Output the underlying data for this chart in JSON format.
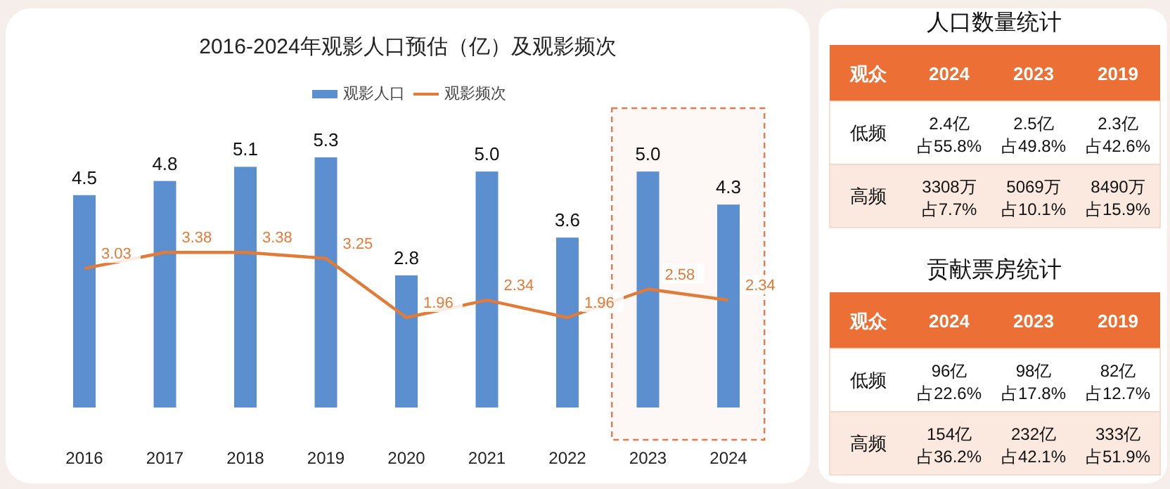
{
  "chart_data": [
    {
      "type": "bar",
      "title": "2016-2024年观影人口预估（亿）及观影频次",
      "categories": [
        "2016",
        "2017",
        "2018",
        "2019",
        "2020",
        "2021",
        "2022",
        "2023",
        "2024"
      ],
      "series": [
        {
          "name": "观影人口",
          "type": "bar",
          "color": "#5b8fd0",
          "values": [
            4.5,
            4.8,
            5.1,
            5.3,
            2.8,
            5.0,
            3.6,
            5.0,
            4.3
          ],
          "value_labels": [
            "4.5",
            "4.8",
            "5.1",
            "5.3",
            "2.8",
            "5.0",
            "3.6",
            "5.0",
            "4.3"
          ]
        },
        {
          "name": "观影频次",
          "type": "line",
          "axis": "y2",
          "color": "#e07b39",
          "values": [
            3.03,
            3.38,
            3.38,
            3.25,
            1.96,
            2.34,
            1.96,
            2.58,
            2.34
          ],
          "value_labels": [
            "3.03",
            "3.38",
            "3.38",
            "3.25",
            "1.96",
            "2.34",
            "1.96",
            "2.58",
            "2.34"
          ]
        }
      ],
      "legend": "top",
      "marker": "none",
      "line_style": "solid",
      "grid": false,
      "bands": [
        {
          "axis": "x",
          "from": "2023",
          "to": "2024",
          "color": "#e07b50"
        }
      ]
    },
    {
      "type": "other",
      "title": "人口数量统计",
      "categories": [
        "观众",
        "2024",
        "2023",
        "2019"
      ],
      "y_categories": [
        "低频",
        "高频"
      ],
      "cell_labels": [
        [
          [
            "2.4亿",
            "占55.8%"
          ],
          [
            "2.5亿",
            "占49.8%"
          ],
          [
            "2.3亿",
            "占42.6%"
          ]
        ],
        [
          [
            "3308万",
            "占7.7%"
          ],
          [
            "5069万",
            "占10.1%"
          ],
          [
            "8490万",
            "占15.9%"
          ]
        ]
      ]
    },
    {
      "type": "other",
      "title": "贡献票房统计",
      "categories": [
        "观众",
        "2024",
        "2023",
        "2019"
      ],
      "y_categories": [
        "低频",
        "高频"
      ],
      "cell_labels": [
        [
          [
            "96亿",
            "占22.6%"
          ],
          [
            "98亿",
            "占17.8%"
          ],
          [
            "82亿",
            "占12.7%"
          ]
        ],
        [
          [
            "154亿",
            "占36.2%"
          ],
          [
            "232亿",
            "占42.1%"
          ],
          [
            "333亿",
            "占51.9%"
          ]
        ]
      ]
    }
  ]
}
